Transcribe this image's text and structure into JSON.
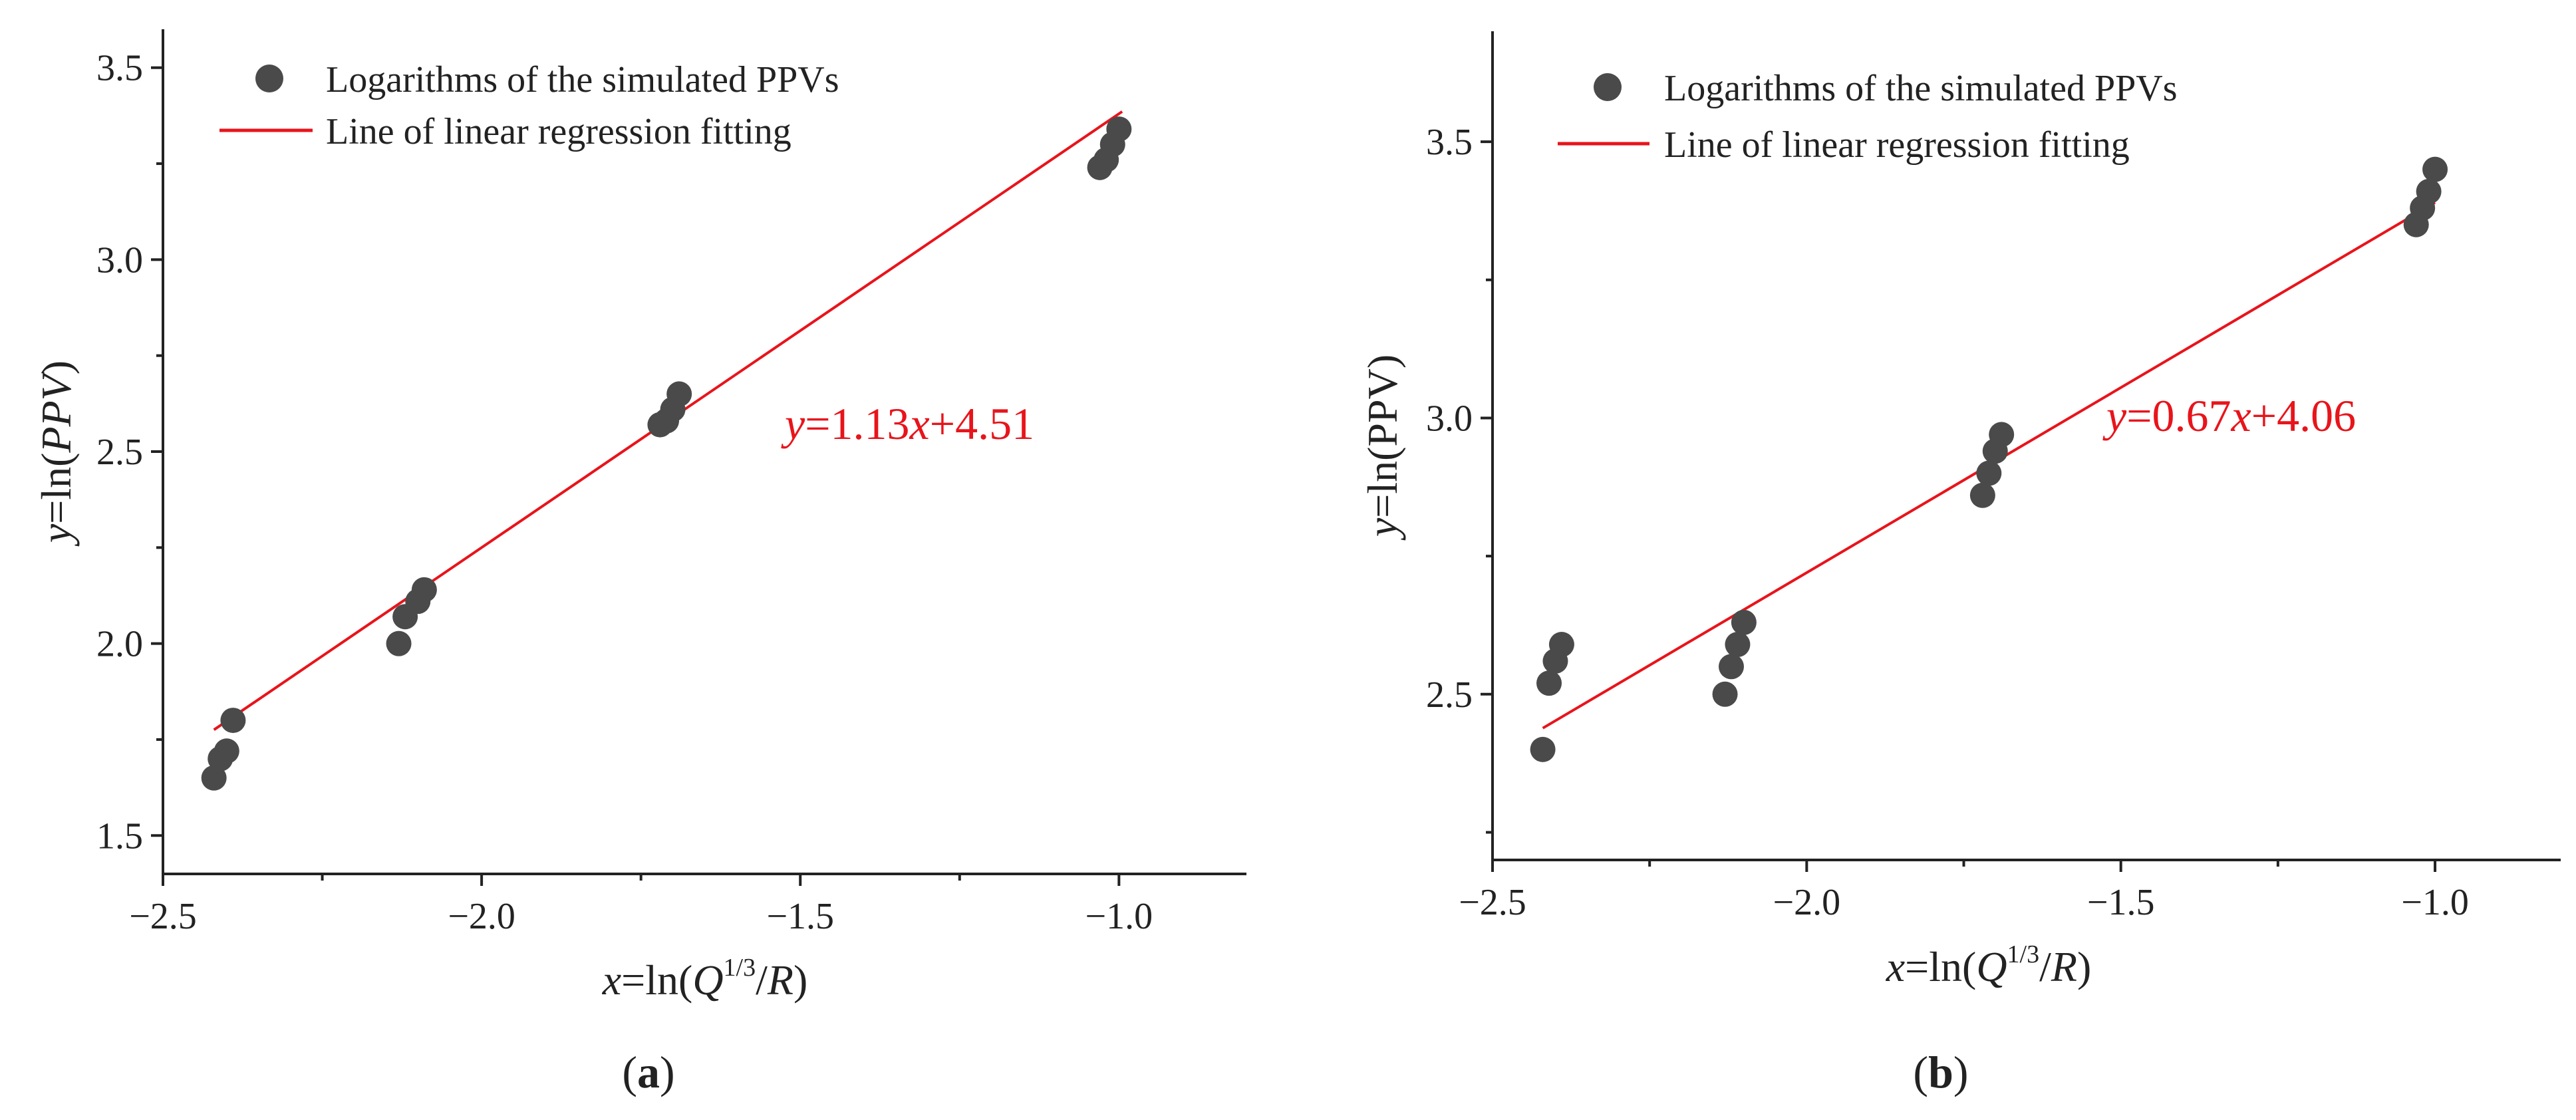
{
  "chart_data": [
    {
      "type": "scatter",
      "panel_label": "(a)",
      "panel_letter": "a",
      "xlabel": {
        "var": "x",
        "mid": "=ln(",
        "q": "Q",
        "sup": "1/3",
        "slash": "/",
        "r": "R",
        "end": ")"
      },
      "ylabel": {
        "var": "y",
        "mid": "=ln(",
        "fn": "PPV",
        "end": ")",
        "fn_italic": true
      },
      "xlim": [
        -2.5,
        -0.8
      ],
      "ylim": [
        1.4,
        3.6
      ],
      "xticks": [
        -2.5,
        -2.0,
        -1.5,
        -1.0
      ],
      "xtick_labels": [
        "−2.5",
        "−2.0",
        "−1.5",
        "−1.0"
      ],
      "yticks": [
        1.5,
        2.0,
        2.5,
        3.0,
        3.5
      ],
      "ytick_labels": [
        "1.5",
        "2.0",
        "2.5",
        "3.0",
        "3.5"
      ],
      "series": [
        {
          "name": "Logarithms of the simulated PPVs",
          "x": [
            -2.42,
            -2.41,
            -2.4,
            -2.39,
            -2.13,
            -2.12,
            -2.1,
            -2.09,
            -1.72,
            -1.71,
            -1.7,
            -1.69,
            -1.03,
            -1.02,
            -1.01,
            -1.0
          ],
          "y": [
            1.65,
            1.7,
            1.72,
            1.8,
            2.0,
            2.07,
            2.11,
            2.14,
            2.57,
            2.58,
            2.61,
            2.65,
            3.24,
            3.26,
            3.3,
            3.34
          ]
        }
      ],
      "fit": {
        "name": "Line of linear regression fitting",
        "slope": 1.13,
        "intercept": 4.51,
        "x_range": [
          -2.42,
          -0.995
        ],
        "equation": {
          "y": "y",
          "eq": "=1.13",
          "x": "x",
          "rest": "+4.51"
        }
      },
      "legend_position": "top-left"
    },
    {
      "type": "scatter",
      "panel_label": "(b)",
      "panel_letter": "b",
      "xlabel": {
        "var": "x",
        "mid": "=ln(",
        "q": "Q",
        "sup": "1/3",
        "slash": "/",
        "r": "R",
        "end": ")"
      },
      "ylabel": {
        "var": "y",
        "mid": "=ln(",
        "fn": "PPV",
        "end": ")",
        "fn_italic": false
      },
      "xlim": [
        -2.5,
        -0.8
      ],
      "ylim": [
        2.2,
        3.7
      ],
      "xticks": [
        -2.5,
        -2.0,
        -1.5,
        -1.0
      ],
      "xtick_labels": [
        "−2.5",
        "−2.0",
        "−1.5",
        "−1.0"
      ],
      "yticks": [
        2.5,
        3.0,
        3.5
      ],
      "ytick_labels": [
        "2.5",
        "3.0",
        "3.5"
      ],
      "series": [
        {
          "name": "Logarithms of the simulated PPVs",
          "x": [
            -2.42,
            -2.41,
            -2.4,
            -2.39,
            -2.13,
            -2.12,
            -2.11,
            -2.1,
            -1.72,
            -1.71,
            -1.7,
            -1.69,
            -1.03,
            -1.02,
            -1.01,
            -1.0
          ],
          "y": [
            2.4,
            2.52,
            2.56,
            2.59,
            2.5,
            2.55,
            2.59,
            2.63,
            2.86,
            2.9,
            2.94,
            2.97,
            3.35,
            3.38,
            3.41,
            3.45
          ]
        }
      ],
      "fit": {
        "name": "Line of linear regression fitting",
        "slope": 0.67,
        "intercept": 4.06,
        "x_range": [
          -2.42,
          -1.0
        ],
        "equation": {
          "y": "y",
          "eq": "=0.67",
          "x": "x",
          "rest": "+4.06"
        }
      },
      "legend_position": "top-left"
    }
  ],
  "colors": {
    "marker": "#4a4a4a",
    "fit": "#e8141b",
    "axis": "#222222"
  }
}
